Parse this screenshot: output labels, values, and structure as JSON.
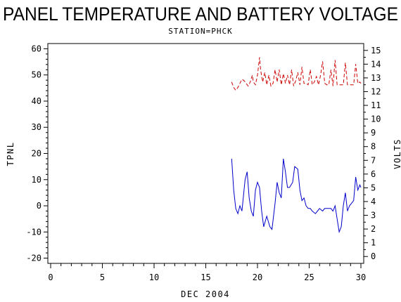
{
  "chart_data": {
    "type": "line",
    "title": "PANEL TEMPERATURE AND BATTERY VOLTAGE",
    "subtitle": "STATION=PHCK",
    "xlabel": "DEC 2004",
    "ylabel_left": "TPNL",
    "ylabel_right": "VOLTS",
    "xlim": [
      0,
      30
    ],
    "ylim_left": [
      -22,
      62
    ],
    "ylim_right": [
      -0.5,
      15.5
    ],
    "x_ticks": [
      0,
      5,
      10,
      15,
      20,
      25,
      30
    ],
    "y_ticks_left": [
      -20,
      -10,
      0,
      10,
      20,
      30,
      40,
      50,
      60
    ],
    "y_ticks_right": [
      0,
      1,
      2,
      3,
      4,
      5,
      6,
      7,
      8,
      9,
      10,
      11,
      12,
      13,
      14,
      15
    ],
    "series": [
      {
        "axis": "left",
        "color": "#0000cc",
        "dash": "solid",
        "points": [
          [
            17.5,
            18
          ],
          [
            17.7,
            6
          ],
          [
            17.9,
            -1
          ],
          [
            18.1,
            -3
          ],
          [
            18.3,
            0
          ],
          [
            18.5,
            -2
          ],
          [
            18.8,
            10
          ],
          [
            19.0,
            13
          ],
          [
            19.2,
            3
          ],
          [
            19.4,
            -2
          ],
          [
            19.6,
            -4
          ],
          [
            19.8,
            6
          ],
          [
            20.0,
            9
          ],
          [
            20.2,
            7
          ],
          [
            20.4,
            -2
          ],
          [
            20.6,
            -8
          ],
          [
            20.9,
            -4
          ],
          [
            21.2,
            -8
          ],
          [
            21.4,
            -9
          ],
          [
            21.7,
            1
          ],
          [
            21.9,
            9
          ],
          [
            22.1,
            5
          ],
          [
            22.3,
            3
          ],
          [
            22.5,
            18
          ],
          [
            22.7,
            13
          ],
          [
            22.9,
            7
          ],
          [
            23.1,
            7
          ],
          [
            23.4,
            9
          ],
          [
            23.6,
            15
          ],
          [
            23.9,
            14
          ],
          [
            24.1,
            6
          ],
          [
            24.3,
            2
          ],
          [
            24.5,
            3
          ],
          [
            24.7,
            0
          ],
          [
            24.9,
            -1
          ],
          [
            25.1,
            -1
          ],
          [
            25.3,
            -2
          ],
          [
            25.6,
            -3
          ],
          [
            25.8,
            -2
          ],
          [
            26.0,
            -1
          ],
          [
            26.3,
            -2
          ],
          [
            26.5,
            -1
          ],
          [
            26.8,
            -1
          ],
          [
            27.1,
            -1
          ],
          [
            27.3,
            -2
          ],
          [
            27.5,
            0
          ],
          [
            27.7,
            -5
          ],
          [
            27.9,
            -10
          ],
          [
            28.1,
            -8
          ],
          [
            28.3,
            0
          ],
          [
            28.5,
            5
          ],
          [
            28.7,
            -2
          ],
          [
            28.9,
            0
          ],
          [
            29.1,
            1
          ],
          [
            29.3,
            2
          ],
          [
            29.5,
            11
          ],
          [
            29.7,
            6
          ],
          [
            29.9,
            8
          ],
          [
            30.0,
            7
          ]
        ]
      },
      {
        "axis": "right",
        "color": "#cc0000",
        "dash": "dashed",
        "points": [
          [
            17.5,
            12.7
          ],
          [
            17.7,
            12.3
          ],
          [
            17.9,
            12.1
          ],
          [
            18.1,
            12.3
          ],
          [
            18.3,
            12.6
          ],
          [
            18.5,
            12.9
          ],
          [
            18.7,
            12.8
          ],
          [
            18.9,
            12.6
          ],
          [
            19.1,
            12.4
          ],
          [
            19.3,
            12.7
          ],
          [
            19.5,
            13.2
          ],
          [
            19.6,
            12.7
          ],
          [
            19.8,
            12.5
          ],
          [
            20.0,
            13.2
          ],
          [
            20.2,
            14.5
          ],
          [
            20.3,
            13.6
          ],
          [
            20.5,
            12.7
          ],
          [
            20.7,
            13.4
          ],
          [
            20.9,
            12.5
          ],
          [
            21.1,
            13.2
          ],
          [
            21.3,
            12.4
          ],
          [
            21.5,
            12.6
          ],
          [
            21.7,
            13.6
          ],
          [
            21.9,
            12.7
          ],
          [
            22.1,
            13.6
          ],
          [
            22.3,
            12.5
          ],
          [
            22.5,
            13.3
          ],
          [
            22.7,
            12.6
          ],
          [
            22.9,
            13.2
          ],
          [
            23.1,
            12.5
          ],
          [
            23.3,
            13.6
          ],
          [
            23.5,
            12.4
          ],
          [
            23.7,
            12.8
          ],
          [
            23.9,
            13.4
          ],
          [
            24.1,
            12.5
          ],
          [
            24.3,
            13.8
          ],
          [
            24.5,
            12.6
          ],
          [
            24.7,
            12.6
          ],
          [
            24.9,
            12.5
          ],
          [
            25.1,
            13.6
          ],
          [
            25.3,
            12.5
          ],
          [
            25.5,
            12.7
          ],
          [
            25.7,
            13.1
          ],
          [
            25.9,
            12.5
          ],
          [
            26.1,
            13.2
          ],
          [
            26.3,
            14.2
          ],
          [
            26.5,
            12.6
          ],
          [
            26.7,
            12.5
          ],
          [
            26.9,
            12.5
          ],
          [
            27.1,
            13.6
          ],
          [
            27.3,
            12.4
          ],
          [
            27.5,
            14.3
          ],
          [
            27.7,
            12.5
          ],
          [
            27.9,
            12.5
          ],
          [
            28.1,
            12.5
          ],
          [
            28.3,
            12.5
          ],
          [
            28.5,
            14.1
          ],
          [
            28.7,
            12.5
          ],
          [
            28.9,
            12.5
          ],
          [
            29.1,
            12.5
          ],
          [
            29.3,
            12.5
          ],
          [
            29.5,
            14.0
          ],
          [
            29.7,
            12.6
          ],
          [
            29.9,
            12.7
          ],
          [
            30.0,
            12.6
          ]
        ]
      }
    ]
  }
}
